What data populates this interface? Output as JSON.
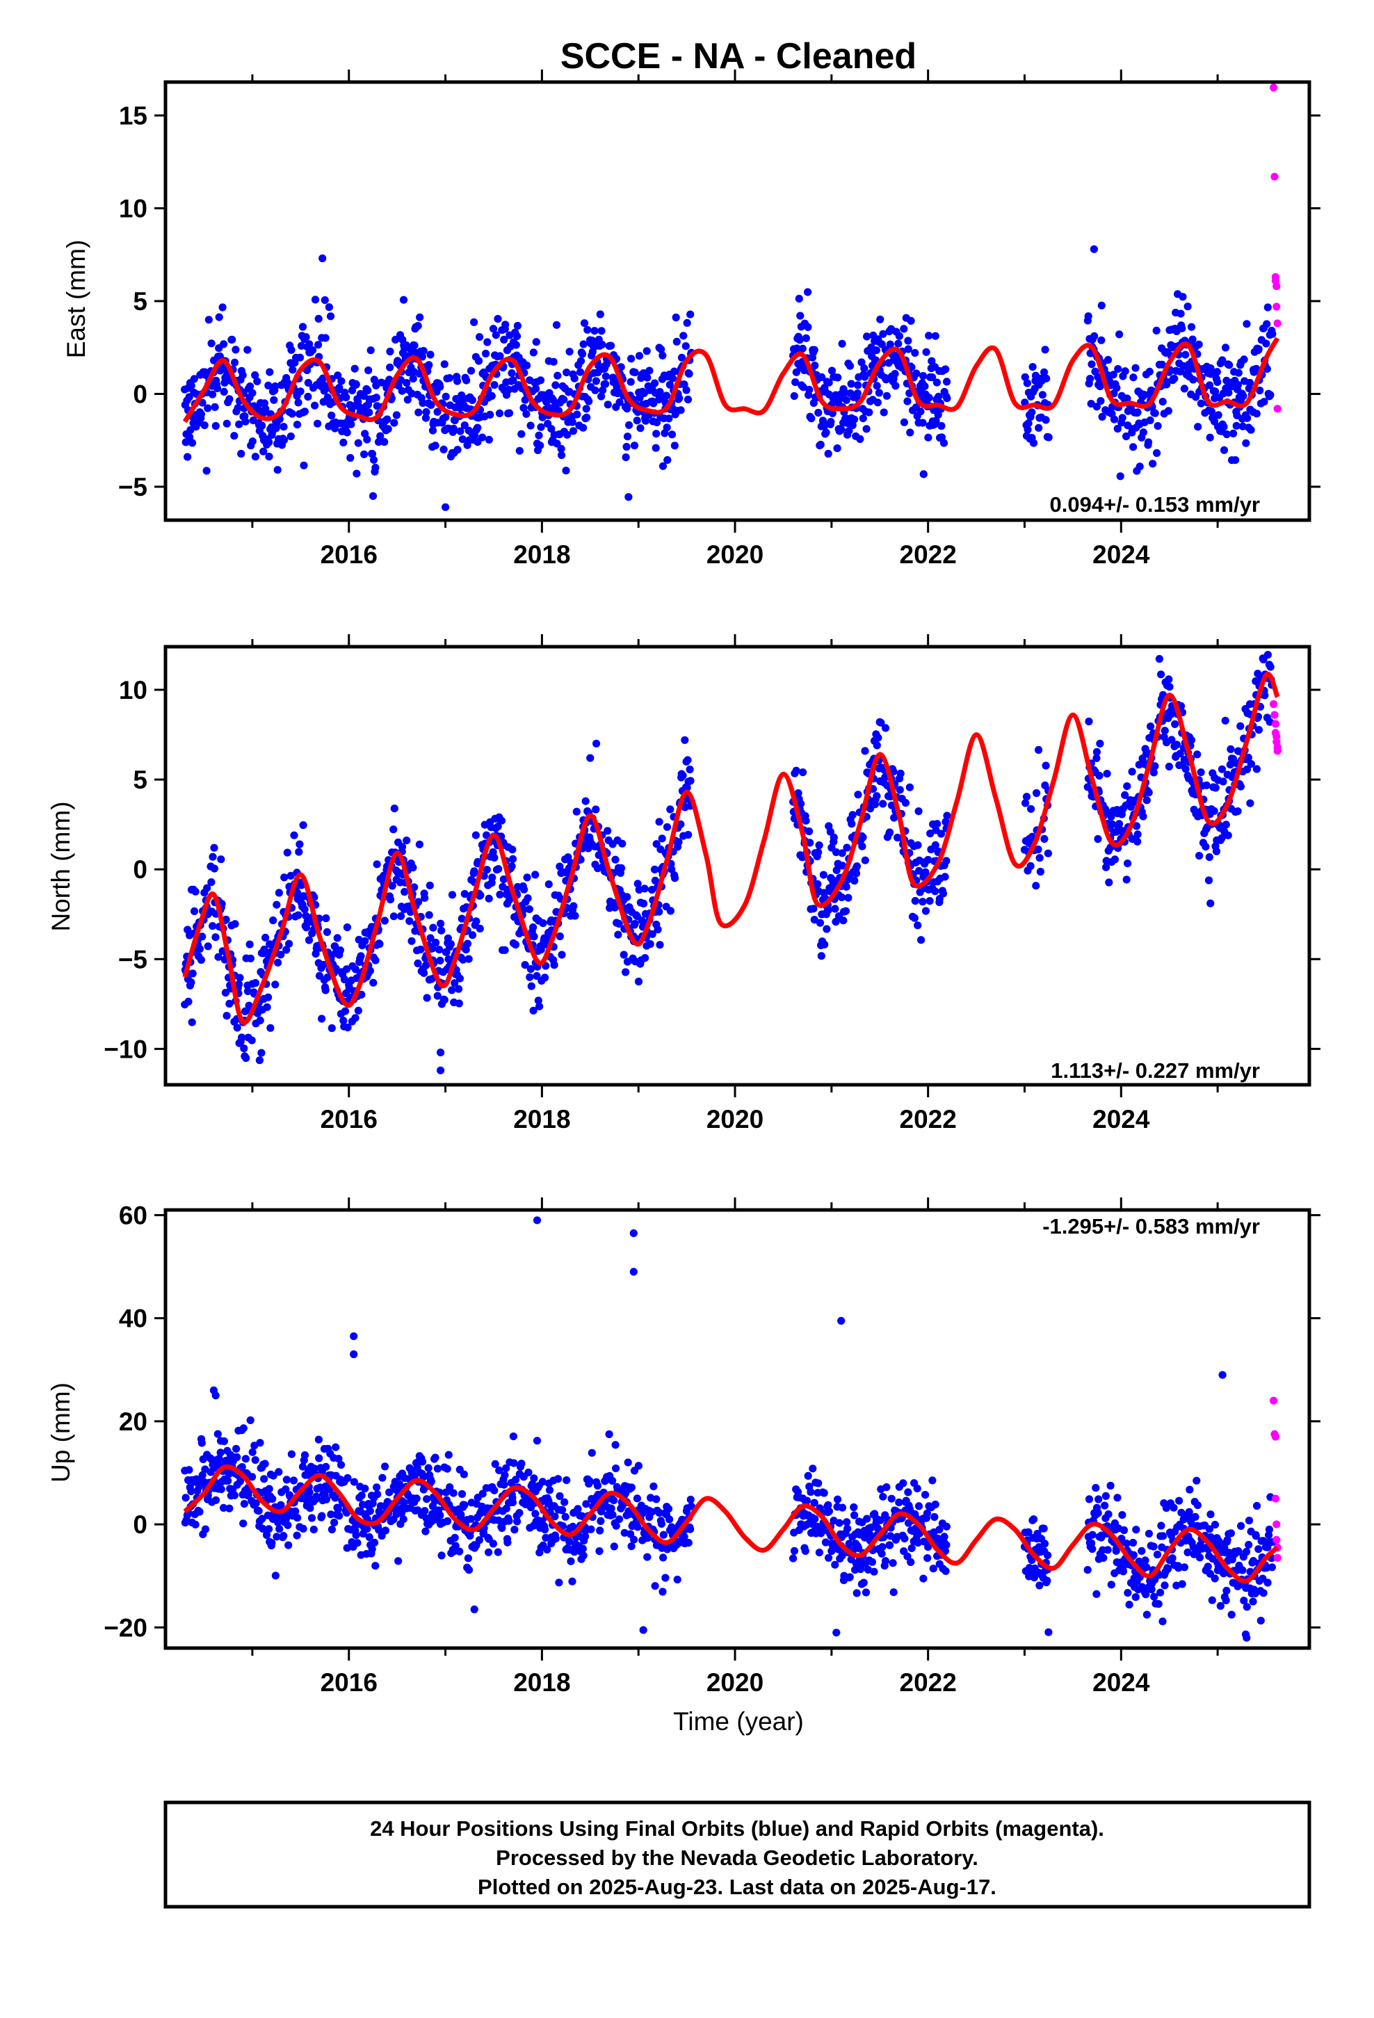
{
  "title": "SCCE  - NA - Cleaned",
  "colors": {
    "final": "#0000ff",
    "rapid": "#ff00ff",
    "fit": "#ff0000",
    "axis": "#000000"
  },
  "chart_data": [
    {
      "type": "scatter",
      "title": "",
      "ylabel": "East (mm)",
      "xlabel": "",
      "xlim": [
        2014.1,
        2025.95
      ],
      "ylim": [
        -6.8,
        16.8
      ],
      "yticks": [
        -5,
        0,
        5,
        10,
        15
      ],
      "xticks": [
        2016,
        2018,
        2020,
        2022,
        2024
      ],
      "rate_label": "0.094+/- 0.153 mm/yr",
      "fit": {
        "x": [
          2014.3,
          2014.5,
          2014.7,
          2014.9,
          2015.1,
          2015.3,
          2015.5,
          2015.7,
          2015.9,
          2016.1,
          2016.3,
          2016.5,
          2016.7,
          2016.9,
          2017.1,
          2017.3,
          2017.5,
          2017.7,
          2017.9,
          2018.1,
          2018.3,
          2018.5,
          2018.7,
          2018.9,
          2019.1,
          2019.3,
          2019.5,
          2019.7,
          2019.9,
          2020.1,
          2020.3,
          2020.5,
          2020.7,
          2020.9,
          2021.1,
          2021.3,
          2021.5,
          2021.7,
          2021.9,
          2022.1,
          2022.3,
          2022.5,
          2022.7,
          2022.9,
          2023.1,
          2023.3,
          2023.5,
          2023.7,
          2023.9,
          2024.1,
          2024.3,
          2024.5,
          2024.7,
          2024.9,
          2025.1,
          2025.3,
          2025.5,
          2025.62
        ],
        "y": [
          -1.5,
          0.2,
          1.8,
          -0.3,
          -1.3,
          -0.9,
          1.3,
          1.7,
          -0.6,
          -1.2,
          -1.2,
          1.0,
          1.9,
          -0.4,
          -1.1,
          -0.9,
          1.2,
          1.8,
          -0.4,
          -1.1,
          -0.8,
          1.5,
          2.0,
          -0.3,
          -0.9,
          -0.7,
          1.8,
          2.1,
          -0.6,
          -0.8,
          -0.9,
          1.1,
          2.1,
          -0.4,
          -0.8,
          -0.4,
          1.7,
          2.3,
          -0.4,
          -0.6,
          -0.7,
          1.5,
          2.4,
          -0.5,
          -0.6,
          -0.6,
          1.8,
          2.5,
          -0.3,
          -0.5,
          -0.5,
          1.7,
          2.6,
          -0.4,
          -0.4,
          -0.5,
          1.9,
          3.0
        ]
      },
      "rapid": {
        "x": [
          2025.58,
          2025.59,
          2025.6,
          2025.6,
          2025.61,
          2025.61,
          2025.62,
          2025.62
        ],
        "y": [
          16.5,
          11.7,
          6.3,
          6.1,
          5.8,
          4.7,
          3.8,
          -0.8
        ]
      },
      "outliers": {
        "x": [
          2023.72,
          2017.0,
          2016.25
        ],
        "y": [
          7.8,
          -6.1,
          -5.5
        ]
      },
      "gaps": [
        [
          2019.55,
          2020.6
        ],
        [
          2022.2,
          2023.0
        ],
        [
          2023.25,
          2023.65
        ]
      ],
      "scatter_model": {
        "seed": 11,
        "spacing": 0.0055,
        "noise": 1.35,
        "stray": 0.03,
        "stray_amp": 3.2
      }
    },
    {
      "type": "scatter",
      "title": "",
      "ylabel": "North (mm)",
      "xlabel": "",
      "xlim": [
        2014.1,
        2025.95
      ],
      "ylim": [
        -12.0,
        12.4
      ],
      "yticks": [
        -10,
        -5,
        0,
        5,
        10
      ],
      "xticks": [
        2016,
        2018,
        2020,
        2022,
        2024
      ],
      "rate_label": "1.113+/- 0.227 mm/yr",
      "fit": {
        "x": [
          2014.3,
          2014.45,
          2014.6,
          2014.75,
          2014.9,
          2015.1,
          2015.3,
          2015.5,
          2015.7,
          2015.95,
          2016.1,
          2016.3,
          2016.5,
          2016.7,
          2016.95,
          2017.1,
          2017.3,
          2017.5,
          2017.7,
          2017.95,
          2018.1,
          2018.3,
          2018.5,
          2018.7,
          2018.95,
          2019.1,
          2019.3,
          2019.5,
          2019.7,
          2019.85,
          2020.1,
          2020.3,
          2020.5,
          2020.7,
          2020.85,
          2021.1,
          2021.3,
          2021.5,
          2021.7,
          2021.85,
          2022.1,
          2022.3,
          2022.5,
          2022.7,
          2022.9,
          2023.1,
          2023.3,
          2023.5,
          2023.7,
          2023.9,
          2024.1,
          2024.3,
          2024.5,
          2024.7,
          2024.9,
          2025.1,
          2025.3,
          2025.5,
          2025.62
        ],
        "y": [
          -6.0,
          -3.2,
          -1.4,
          -4.8,
          -8.5,
          -6.5,
          -3.5,
          -0.3,
          -3.8,
          -7.4,
          -6.6,
          -2.9,
          0.9,
          -2.6,
          -6.4,
          -5.0,
          -1.4,
          1.9,
          -1.3,
          -5.1,
          -4.0,
          -0.5,
          3.0,
          -0.2,
          -4.0,
          -3.1,
          0.6,
          4.3,
          0.8,
          -3.0,
          -2.0,
          1.6,
          5.3,
          2.0,
          -1.9,
          -0.7,
          2.6,
          6.4,
          3.0,
          -0.8,
          0.3,
          3.8,
          7.5,
          4.0,
          0.3,
          1.4,
          4.9,
          8.6,
          5.0,
          1.5,
          2.4,
          6.0,
          9.7,
          6.5,
          2.7,
          3.6,
          7.1,
          10.8,
          9.6
        ]
      },
      "rapid": {
        "x": [
          2025.58,
          2025.59,
          2025.6,
          2025.6,
          2025.61,
          2025.61,
          2025.62,
          2025.62
        ],
        "y": [
          9.2,
          8.6,
          8.1,
          7.6,
          7.4,
          7.1,
          6.8,
          6.6
        ]
      },
      "outliers": {
        "x": [
          2016.95,
          2016.95,
          2018.5,
          2019.48
        ],
        "y": [
          -11.2,
          -10.2,
          6.2,
          7.2
        ]
      },
      "gaps": [
        [
          2019.55,
          2020.6
        ],
        [
          2022.2,
          2023.0
        ],
        [
          2023.25,
          2023.65
        ]
      ],
      "scatter_model": {
        "seed": 23,
        "spacing": 0.0055,
        "noise": 1.45,
        "stray": 0.03,
        "stray_amp": 3.0
      }
    },
    {
      "type": "scatter",
      "title": "",
      "ylabel": "Up (mm)",
      "xlabel": "Time (year)",
      "xlim": [
        2014.1,
        2025.95
      ],
      "ylim": [
        -24,
        61
      ],
      "yticks": [
        -20,
        0,
        20,
        40,
        60
      ],
      "xticks": [
        2016,
        2018,
        2020,
        2022,
        2024
      ],
      "rate_label": "-1.295+/- 0.583 mm/yr",
      "fit": {
        "x": [
          2014.3,
          2014.5,
          2014.7,
          2014.9,
          2015.1,
          2015.3,
          2015.5,
          2015.7,
          2015.9,
          2016.1,
          2016.3,
          2016.5,
          2016.7,
          2016.9,
          2017.1,
          2017.3,
          2017.5,
          2017.7,
          2017.9,
          2018.1,
          2018.3,
          2018.5,
          2018.7,
          2018.9,
          2019.1,
          2019.3,
          2019.5,
          2019.7,
          2019.9,
          2020.1,
          2020.3,
          2020.5,
          2020.7,
          2020.9,
          2021.1,
          2021.3,
          2021.5,
          2021.7,
          2021.9,
          2022.1,
          2022.3,
          2022.5,
          2022.7,
          2022.9,
          2023.1,
          2023.3,
          2023.5,
          2023.7,
          2023.9,
          2024.1,
          2024.3,
          2024.5,
          2024.7,
          2024.9,
          2025.1,
          2025.3,
          2025.5,
          2025.62
        ],
        "y": [
          2.5,
          6.0,
          11.0,
          9.5,
          4.5,
          2.5,
          6.5,
          9.5,
          6.0,
          1.0,
          0.5,
          5.0,
          8.5,
          6.0,
          1.0,
          -1.0,
          3.0,
          7.0,
          5.5,
          0.5,
          -2.0,
          2.0,
          6.0,
          4.0,
          -1.0,
          -3.5,
          0.5,
          5.0,
          2.5,
          -2.5,
          -5.0,
          -1.0,
          3.5,
          1.5,
          -4.0,
          -6.0,
          -2.0,
          2.0,
          0.0,
          -5.0,
          -7.5,
          -3.0,
          1.0,
          -1.0,
          -6.0,
          -8.5,
          -4.0,
          0.0,
          -2.0,
          -7.0,
          -10.0,
          -5.0,
          -1.0,
          -3.5,
          -8.5,
          -11.0,
          -6.5,
          -4.5
        ]
      },
      "rapid": {
        "x": [
          2025.58,
          2025.59,
          2025.6,
          2025.6,
          2025.61,
          2025.61,
          2025.62,
          2025.62
        ],
        "y": [
          24.0,
          17.5,
          17.0,
          5.0,
          0.0,
          -3.0,
          -4.5,
          -6.5
        ]
      },
      "outliers": {
        "x": [
          2017.95,
          2018.95,
          2018.95,
          2021.1,
          2016.05,
          2016.05,
          2025.05,
          2014.6,
          2014.62,
          2019.05,
          2021.05,
          2017.3,
          2025.3
        ],
        "y": [
          59,
          56.5,
          49,
          39.5,
          36.5,
          33.0,
          29,
          26,
          25,
          -20.5,
          -21,
          -16.5,
          -22
        ],
        "note": ""
      },
      "gaps": [
        [
          2019.55,
          2020.6
        ],
        [
          2022.2,
          2023.0
        ],
        [
          2023.25,
          2023.65
        ]
      ],
      "scatter_model": {
        "seed": 37,
        "spacing": 0.0055,
        "noise": 4.2,
        "stray": 0.03,
        "stray_amp": 8.0
      }
    }
  ],
  "footer": {
    "line1": "24 Hour Positions Using Final Orbits (blue) and Rapid Orbits (magenta).",
    "line2": "Processed by the Nevada Geodetic Laboratory.",
    "line3": "Plotted on 2025-Aug-23. Last data on 2025-Aug-17."
  }
}
